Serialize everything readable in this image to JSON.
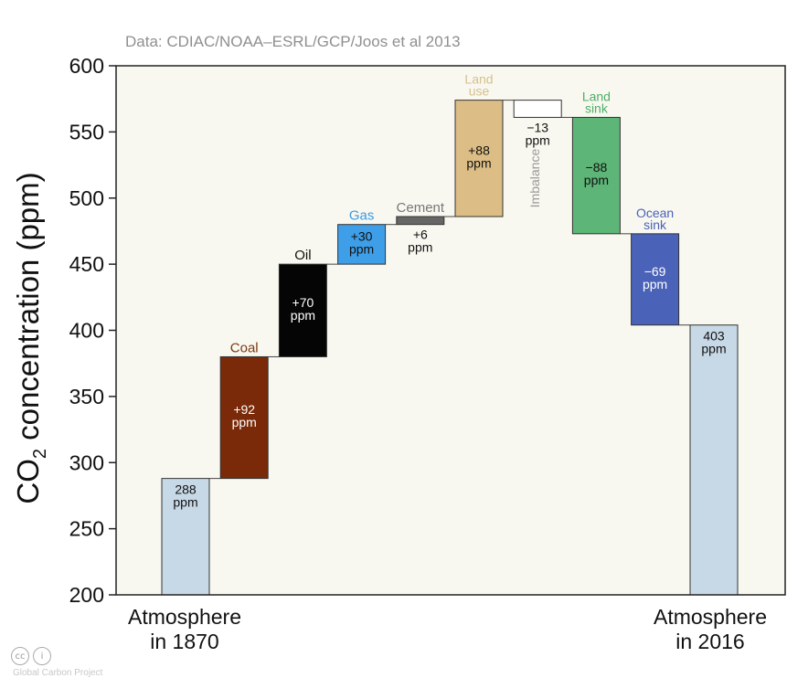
{
  "source": "Data: CDIAC/NOAA–ESRL/GCP/Joos et al 2013",
  "ylabel_main": "CO",
  "ylabel_sub": "2",
  "ylabel_tail": " concentration (ppm)",
  "credit": "Global Carbon Project",
  "chart_data": {
    "type": "bar",
    "subtype": "waterfall",
    "ylim": [
      200,
      600
    ],
    "yticks": [
      "200",
      "250",
      "300",
      "350",
      "400",
      "450",
      "500",
      "550",
      "600"
    ],
    "ylabel": "CO2 concentration (ppm)",
    "x_labels": {
      "start": [
        "Atmosphere",
        "in 1870"
      ],
      "end": [
        "Atmosphere",
        "in 2016"
      ]
    },
    "steps": [
      {
        "label": "",
        "value_text": "288\nppm",
        "start": 200,
        "end": 288,
        "color": "#c7d8e6",
        "text_color": "#111111",
        "label_color": "#111111"
      },
      {
        "label": "Coal",
        "value_text": "+92\nppm",
        "start": 288,
        "end": 380,
        "color": "#7a2a08",
        "text_color": "#ffffff",
        "label_color": "#7a3a10"
      },
      {
        "label": "Oil",
        "value_text": "+70\nppm",
        "start": 380,
        "end": 450,
        "color": "#050505",
        "text_color": "#ffffff",
        "label_color": "#111111"
      },
      {
        "label": "Gas",
        "value_text": "+30\nppm",
        "start": 450,
        "end": 480,
        "color": "#3f9ee8",
        "text_color": "#111111",
        "label_color": "#3a9ae0"
      },
      {
        "label": "Cement",
        "value_text": "+6\nppm",
        "start": 480,
        "end": 486,
        "color": "#666666",
        "text_color": "#111111",
        "label_color": "#777777"
      },
      {
        "label": "Land\nuse",
        "value_text": "+88\nppm",
        "start": 486,
        "end": 574,
        "color": "#dcbd85",
        "text_color": "#111111",
        "label_color": "#d6c08e"
      },
      {
        "label": "Imbalance",
        "value_text": "−13\nppm",
        "start": 574,
        "end": 561,
        "color": "#ffffff",
        "text_color": "#111111",
        "label_color": "#999999"
      },
      {
        "label": "Land\nsink",
        "value_text": "−88\nppm",
        "start": 561,
        "end": 473,
        "color": "#5db577",
        "text_color": "#111111",
        "label_color": "#4caf66"
      },
      {
        "label": "Ocean\nsink",
        "value_text": "−69\nppm",
        "start": 473,
        "end": 404,
        "color": "#4a62b8",
        "text_color": "#ffffff",
        "label_color": "#4a62b8"
      },
      {
        "label": "",
        "value_text": "403\nppm",
        "start": 200,
        "end": 404,
        "color": "#c7d8e6",
        "text_color": "#111111",
        "label_color": "#111111"
      }
    ]
  }
}
